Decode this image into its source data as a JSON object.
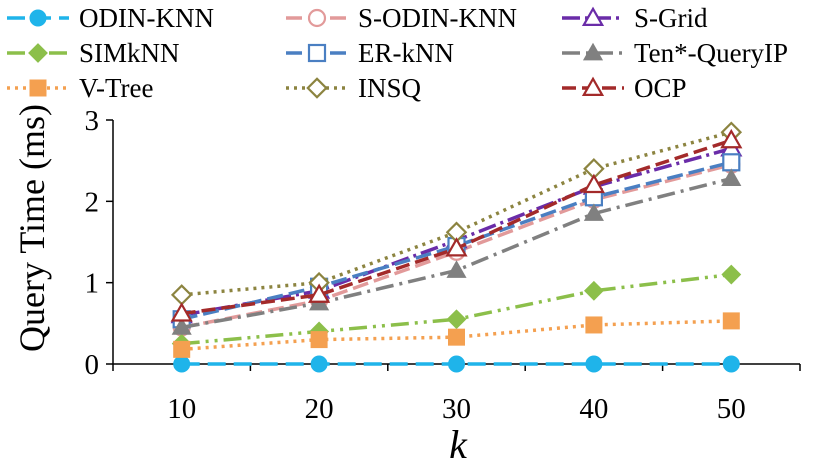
{
  "chart_data": {
    "type": "line",
    "title": "",
    "xlabel": "k",
    "ylabel": "Query Time (ms)",
    "x": [
      10,
      20,
      30,
      40,
      50
    ],
    "xticks": [
      "10",
      "20",
      "30",
      "40",
      "50"
    ],
    "yticks": [
      "0",
      "1",
      "2",
      "3"
    ],
    "ylim": [
      0,
      3
    ],
    "grid": false,
    "legend_position": "top",
    "series": [
      {
        "name": "ODIN-KNN",
        "values": [
          0.0,
          0.0,
          0.0,
          0.0,
          0.0
        ],
        "color": "#1FB4EA",
        "marker": "circle-filled",
        "dash": "18,8"
      },
      {
        "name": "S-ODIN-KNN",
        "values": [
          0.45,
          0.78,
          1.38,
          2.02,
          2.45
        ],
        "color": "#E29A9A",
        "marker": "circle-open",
        "dash": "16,6"
      },
      {
        "name": "S-Grid",
        "values": [
          0.6,
          0.9,
          1.52,
          2.18,
          2.65
        ],
        "color": "#6A2CA8",
        "marker": "triangle-open",
        "dash": "18,5,3,5"
      },
      {
        "name": "SIMkNN",
        "values": [
          0.25,
          0.4,
          0.55,
          0.9,
          1.1
        ],
        "color": "#8CBF4A",
        "marker": "diamond-filled",
        "dash": "18,6,3,6,3,6"
      },
      {
        "name": "ER-kNN",
        "values": [
          0.55,
          0.95,
          1.45,
          2.05,
          2.48
        ],
        "color": "#4A7FC2",
        "marker": "square-open",
        "dash": "16,6"
      },
      {
        "name": "Ten*-QueryIP",
        "values": [
          0.45,
          0.75,
          1.15,
          1.85,
          2.28
        ],
        "color": "#808080",
        "marker": "triangle-filled",
        "dash": "18,6,3,6"
      },
      {
        "name": "V-Tree",
        "values": [
          0.18,
          0.3,
          0.33,
          0.48,
          0.53
        ],
        "color": "#F4A050",
        "marker": "square-filled",
        "dash": "3,5"
      },
      {
        "name": "INSQ",
        "values": [
          0.85,
          1.0,
          1.62,
          2.4,
          2.85
        ],
        "color": "#8C8440",
        "marker": "diamond-open",
        "dash": "3,5"
      },
      {
        "name": "OCP",
        "values": [
          0.62,
          0.85,
          1.42,
          2.2,
          2.75
        ],
        "color": "#A32A2A",
        "marker": "triangle-open",
        "dash": "14,6"
      }
    ]
  }
}
